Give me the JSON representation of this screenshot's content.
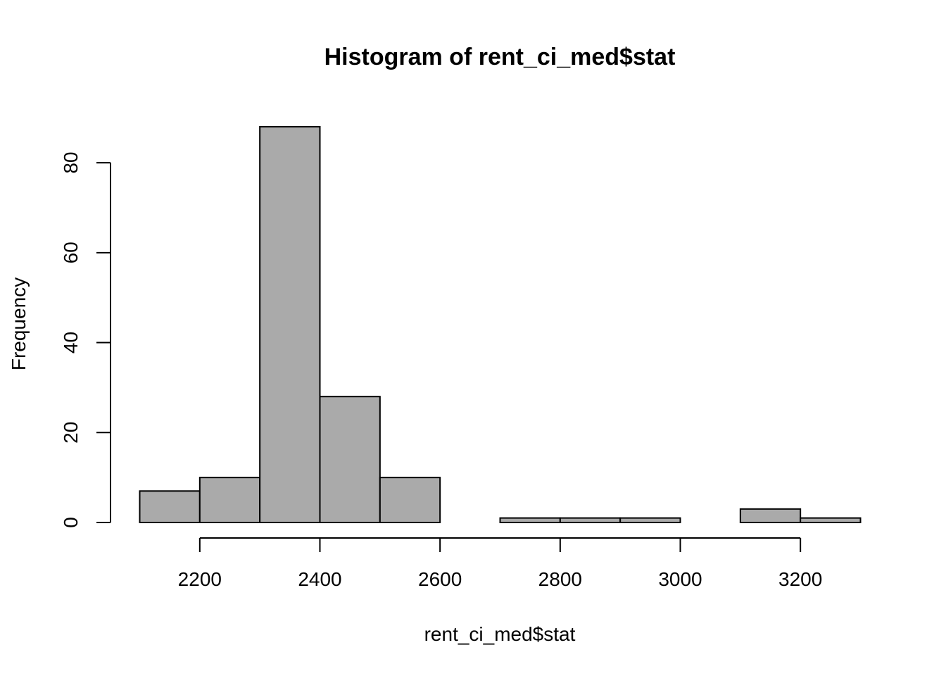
{
  "chart_data": {
    "type": "bar",
    "title": "Histogram of rent_ci_med$stat",
    "xlabel": "rent_ci_med$stat",
    "ylabel": "Frequency",
    "bins": [
      {
        "start": 2100,
        "end": 2200,
        "count": 7
      },
      {
        "start": 2200,
        "end": 2300,
        "count": 10
      },
      {
        "start": 2300,
        "end": 2400,
        "count": 88
      },
      {
        "start": 2400,
        "end": 2500,
        "count": 28
      },
      {
        "start": 2500,
        "end": 2600,
        "count": 10
      },
      {
        "start": 2600,
        "end": 2700,
        "count": 0
      },
      {
        "start": 2700,
        "end": 2800,
        "count": 1
      },
      {
        "start": 2800,
        "end": 2900,
        "count": 1
      },
      {
        "start": 2900,
        "end": 3000,
        "count": 1
      },
      {
        "start": 3000,
        "end": 3100,
        "count": 0
      },
      {
        "start": 3100,
        "end": 3200,
        "count": 3
      },
      {
        "start": 3200,
        "end": 3300,
        "count": 1
      }
    ],
    "x_ticks": [
      2200,
      2400,
      2600,
      2800,
      3000,
      3200
    ],
    "y_ticks": [
      0,
      20,
      40,
      60,
      80
    ],
    "xlim": [
      2100,
      3300
    ],
    "ylim": [
      0,
      88
    ],
    "grid": false,
    "colors": {
      "bar_fill": "#aaaaaa",
      "bar_stroke": "#000000"
    }
  }
}
